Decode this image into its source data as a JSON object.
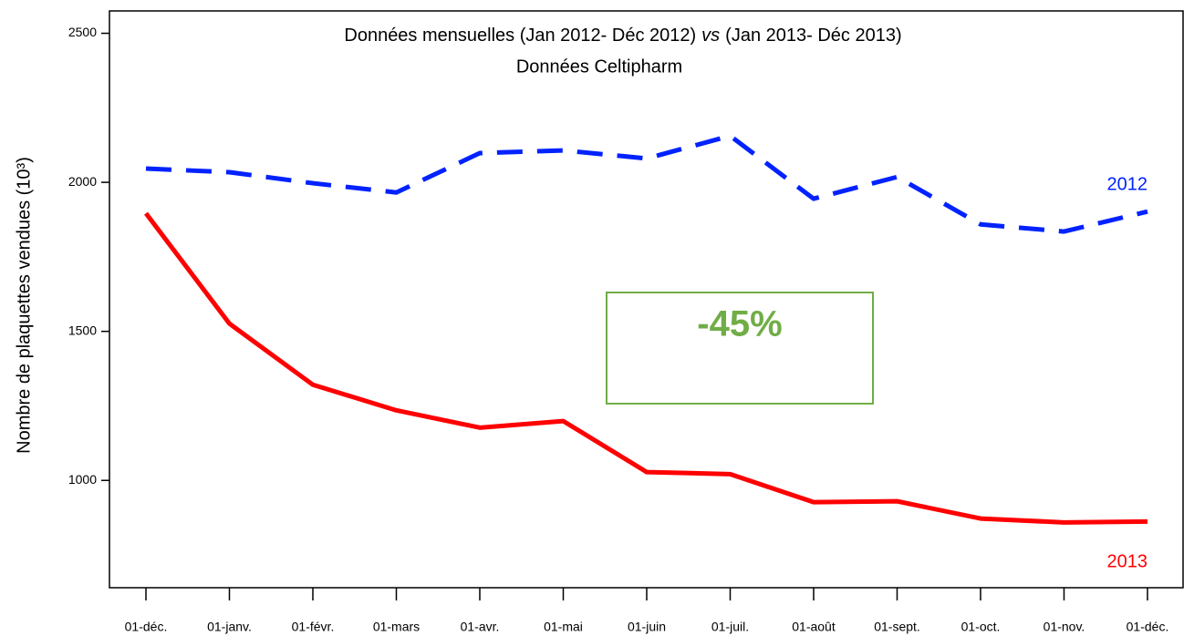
{
  "chart_data": {
    "type": "line",
    "title": [
      "Données mensuelles (Jan 2012- Déc 2012)",
      "vs",
      "(Jan 2013- Déc 2013)"
    ],
    "subtitle": "Données Celtipharm",
    "ylabel": "Nombre de plaquettes vendues (10³)",
    "categories": [
      "01-déc.",
      "01-janv.",
      "01-févr.",
      "01-mars",
      "01-avr.",
      "01-mai",
      "01-juin",
      "01-juil.",
      "01-août",
      "01-sept.",
      "01-oct.",
      "01-nov.",
      "01-déc."
    ],
    "series": [
      {
        "name": "2012",
        "color": "#0022ff",
        "dashed": true,
        "values": [
          2046,
          2034,
          1997,
          1966,
          2098,
          2107,
          2080,
          2156,
          1945,
          2018,
          1859,
          1835,
          1902
        ]
      },
      {
        "name": "2013",
        "color": "#ff0000",
        "dashed": false,
        "values": [
          1896,
          1526,
          1321,
          1235,
          1177,
          1199,
          1028,
          1021,
          927,
          930,
          872,
          859,
          862
        ]
      }
    ],
    "annotation": "-45%",
    "ylim": [
      640,
      2575
    ],
    "yticks": [
      1000,
      1500,
      2000,
      2500
    ]
  }
}
